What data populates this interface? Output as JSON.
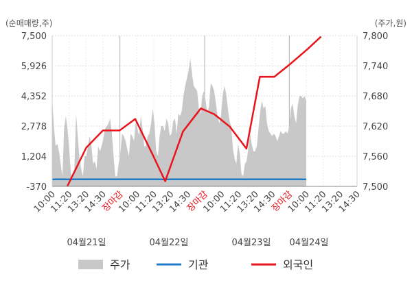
{
  "chart_data": {
    "type": "combo",
    "left_axis_label": "(순매매량,주)",
    "right_axis_label": "(주가,원)",
    "left_ticks": [
      "7,500",
      "5,926",
      "4,352",
      "2,778",
      "1,204",
      "-370"
    ],
    "right_ticks": [
      "7,800",
      "7,740",
      "7,680",
      "7,620",
      "7,560",
      "7,500"
    ],
    "left_range": [
      -370,
      7500
    ],
    "right_range": [
      7500,
      7800
    ],
    "x_tick_labels": [
      {
        "label": "10:00",
        "red": false
      },
      {
        "label": "11:20",
        "red": false
      },
      {
        "label": "13:20",
        "red": false
      },
      {
        "label": "14:30",
        "red": false
      },
      {
        "label": "장마감",
        "red": true
      },
      {
        "label": "10:00",
        "red": false
      },
      {
        "label": "11:20",
        "red": false
      },
      {
        "label": "13:20",
        "red": false
      },
      {
        "label": "14:30",
        "red": false
      },
      {
        "label": "장마감",
        "red": true
      },
      {
        "label": "10:00",
        "red": false
      },
      {
        "label": "11:20",
        "red": false
      },
      {
        "label": "13:20",
        "red": false
      },
      {
        "label": "14:30",
        "red": false
      },
      {
        "label": "장마감",
        "red": true
      },
      {
        "label": "10:00",
        "red": false
      },
      {
        "label": "11:20",
        "red": false
      },
      {
        "label": "13:20",
        "red": false
      },
      {
        "label": "14:30",
        "red": false
      }
    ],
    "date_labels": [
      "04월21일",
      "04월22일",
      "04월23일",
      "04월24일"
    ],
    "series": [
      {
        "name": "주가",
        "type": "area",
        "color": "#c8c8c8",
        "axis": "right",
        "values": [
          7675,
          7620,
          7580,
          7585,
          7570,
          7545,
          7520,
          7615,
          7640,
          7615,
          7575,
          7525,
          7515,
          7535,
          7645,
          7600,
          7555,
          7535,
          7520,
          7560,
          7560,
          7580,
          7600,
          7580,
          7545,
          7550,
          7535,
          7580,
          7570,
          7580,
          7595,
          7615,
          7620,
          7625,
          7635,
          7605,
          7560,
          7520,
          7520,
          7545,
          7565,
          7605,
          7600,
          7590,
          7575,
          7560,
          7605,
          7600,
          7590,
          7630,
          7615,
          7600,
          7640,
          7615,
          7580,
          7580,
          7600,
          7605,
          7625,
          7655,
          7625,
          7570,
          7560,
          7600,
          7620,
          7620,
          7610,
          7635,
          7625,
          7600,
          7605,
          7630,
          7635,
          7605,
          7645,
          7640,
          7650,
          7680,
          7700,
          7715,
          7730,
          7755,
          7725,
          7700,
          7695,
          7690,
          7655,
          7645,
          7680,
          7690,
          7670,
          7645,
          7660,
          7705,
          7700,
          7690,
          7665,
          7640,
          7625,
          7640,
          7680,
          7700,
          7685,
          7655,
          7630,
          7620,
          7575,
          7555,
          7545,
          7585,
          7565,
          7525,
          7520,
          7545,
          7550,
          7575,
          7605,
          7585,
          7570,
          7570,
          7580,
          7615,
          7650,
          7670,
          7655,
          7660,
          7625,
          7610,
          7605,
          7600,
          7605,
          7600,
          7590,
          7600,
          7610,
          7605,
          7605,
          7610,
          7605,
          7620,
          7655,
          7665,
          7640,
          7625,
          7660,
          7680,
          7680,
          7675,
          7680,
          7670
        ]
      },
      {
        "name": "기관",
        "type": "line",
        "color": "#1f7ac8",
        "axis": "left",
        "values": [
          0,
          0,
          0,
          0,
          0,
          0,
          0,
          0,
          0,
          0,
          0,
          0,
          0,
          0,
          0,
          0,
          0,
          0,
          0,
          0,
          0,
          0,
          0,
          0,
          0,
          0,
          0,
          0,
          0,
          0
        ]
      },
      {
        "name": "외국인",
        "type": "line",
        "color": "#e8141b",
        "axis": "left",
        "points": [
          {
            "x": 0,
            "y": -370
          },
          {
            "x": 0.085,
            "y": 1650
          },
          {
            "x": 0.16,
            "y": 2550
          },
          {
            "x": 0.235,
            "y": 2550
          },
          {
            "x": 0.305,
            "y": 3150
          },
          {
            "x": 0.385,
            "y": 1250
          },
          {
            "x": 0.44,
            "y": -100
          },
          {
            "x": 0.52,
            "y": 2500
          },
          {
            "x": 0.6,
            "y": 3700
          },
          {
            "x": 0.66,
            "y": 3400
          },
          {
            "x": 0.73,
            "y": 2750
          },
          {
            "x": 0.805,
            "y": 1600
          },
          {
            "x": 0.865,
            "y": 5350
          },
          {
            "x": 0.93,
            "y": 5350
          },
          {
            "x": 1.0,
            "y": 6000
          },
          {
            "x": 1.08,
            "y": 6800
          },
          {
            "x": 1.14,
            "y": 7450
          }
        ]
      }
    ],
    "legend": [
      {
        "label": "주가",
        "kind": "area",
        "color": "#c8c8c8"
      },
      {
        "label": "기관",
        "kind": "line",
        "color": "#1f7ac8"
      },
      {
        "label": "외국인",
        "kind": "line",
        "color": "#e8141b"
      }
    ]
  }
}
